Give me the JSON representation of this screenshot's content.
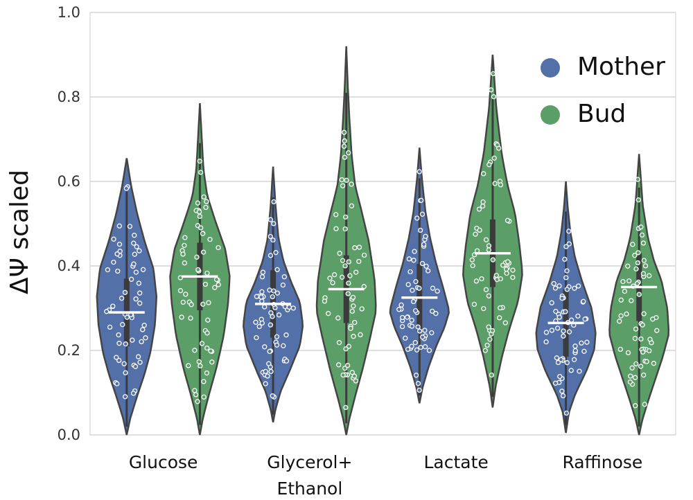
{
  "chart_data": {
    "type": "violin",
    "ylabel": "ΔΨ scaled",
    "ylim": [
      0.0,
      1.0
    ],
    "yticks": [
      "0.0",
      "0.2",
      "0.4",
      "0.6",
      "0.8",
      "1.0"
    ],
    "grid": true,
    "legend_position": "top-right",
    "categories": [
      {
        "label_lines": [
          "Glucose"
        ]
      },
      {
        "label_lines": [
          "Glycerol+",
          "Ethanol"
        ]
      },
      {
        "label_lines": [
          "Lactate"
        ]
      },
      {
        "label_lines": [
          "Raffinose"
        ]
      }
    ],
    "series": [
      {
        "name": "Mother",
        "color": "#5470a8",
        "medians": [
          0.29,
          0.31,
          0.325,
          0.265
        ],
        "ranges": [
          [
            0.0,
            0.655
          ],
          [
            0.03,
            0.635
          ],
          [
            0.075,
            0.68
          ],
          [
            0.005,
            0.6
          ]
        ]
      },
      {
        "name": "Bud",
        "color": "#5b9e68",
        "medians": [
          0.375,
          0.345,
          0.43,
          0.35
        ],
        "ranges": [
          [
            0.0,
            0.785
          ],
          [
            0.0,
            0.92
          ],
          [
            0.065,
            0.9
          ],
          [
            0.0,
            0.665
          ]
        ]
      }
    ]
  }
}
